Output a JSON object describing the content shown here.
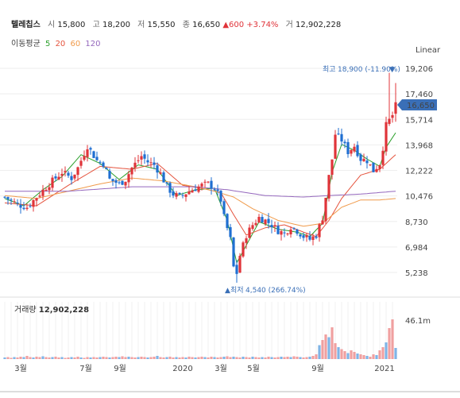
{
  "header": {
    "name": "텔레칩스",
    "open_label": "시",
    "open": "15,800",
    "high_label": "고",
    "high": "18,200",
    "low_label": "저",
    "low": "15,550",
    "close_label": "종",
    "close": "16,650",
    "change": "▲600",
    "change_pct": "+3.74%",
    "volume_label": "거",
    "volume": "12,902,228"
  },
  "moving_average": {
    "label": "이동평균",
    "periods": [
      {
        "value": "5",
        "color": "#2ca02c"
      },
      {
        "value": "20",
        "color": "#e5533d"
      },
      {
        "value": "60",
        "color": "#f09a4a"
      },
      {
        "value": "120",
        "color": "#9467bd"
      }
    ]
  },
  "scale_mode": "Linear",
  "current_price_tag": "16,650",
  "annotations": {
    "max_label": "최고",
    "max_value": "18,900 (-11.90%)",
    "min_label": "최저",
    "min_value": "4,540 (266.74%)"
  },
  "volume_panel": {
    "label": "거래량",
    "value": "12,902,228",
    "max_tick": "46.1m"
  },
  "colors": {
    "up": "#e0343a",
    "down": "#1f6fd1",
    "grid": "#eeeeee",
    "price_tag": "#3a6fb7"
  },
  "chart_data": {
    "type": "candlestick",
    "x_labels": [
      "3월",
      "7월",
      "9월",
      "2020",
      "3월",
      "5월",
      "9월",
      "2021"
    ],
    "y_ticks": [
      "19,206",
      "17,460",
      "15,714",
      "13,968",
      "12,222",
      "10,476",
      "8,730",
      "6,984",
      "5,238"
    ],
    "ylim": [
      4540,
      19206
    ],
    "price_path": [
      [
        0,
        10400
      ],
      [
        4,
        9900
      ],
      [
        7,
        9700
      ],
      [
        10,
        10400
      ],
      [
        14,
        11300
      ],
      [
        18,
        12100
      ],
      [
        21,
        11700
      ],
      [
        23,
        12400
      ],
      [
        26,
        13900
      ],
      [
        29,
        12900
      ],
      [
        31,
        12700
      ],
      [
        33,
        11600
      ],
      [
        36,
        11300
      ],
      [
        38,
        11600
      ],
      [
        40,
        12400
      ],
      [
        43,
        13200
      ],
      [
        45,
        12800
      ],
      [
        47,
        12600
      ],
      [
        49,
        12000
      ],
      [
        51,
        11100
      ],
      [
        53,
        10600
      ],
      [
        55,
        10400
      ],
      [
        58,
        10800
      ],
      [
        60,
        11000
      ],
      [
        62,
        11200
      ],
      [
        64,
        11300
      ],
      [
        66,
        11000
      ],
      [
        68,
        10200
      ],
      [
        69,
        9000
      ],
      [
        71,
        7500
      ],
      [
        72,
        5600
      ],
      [
        73,
        5200
      ],
      [
        74,
        6400
      ],
      [
        76,
        7800
      ],
      [
        78,
        8500
      ],
      [
        80,
        9000
      ],
      [
        82,
        8800
      ],
      [
        84,
        8500
      ],
      [
        86,
        8100
      ],
      [
        88,
        7900
      ],
      [
        90,
        8400
      ],
      [
        92,
        8100
      ],
      [
        94,
        7700
      ],
      [
        96,
        7500
      ],
      [
        98,
        7800
      ],
      [
        100,
        9000
      ],
      [
        102,
        11800
      ],
      [
        103,
        13000
      ],
      [
        104,
        14700
      ],
      [
        106,
        14300
      ],
      [
        108,
        13500
      ],
      [
        110,
        13900
      ],
      [
        112,
        13000
      ],
      [
        114,
        12900
      ],
      [
        116,
        12200
      ],
      [
        118,
        12700
      ],
      [
        119,
        13800
      ],
      [
        120,
        15300
      ],
      [
        122,
        16000
      ],
      [
        123,
        16650
      ]
    ],
    "ma_series": [
      {
        "period": "5",
        "color": "#2ca02c",
        "points": [
          [
            0,
            10300
          ],
          [
            6,
            9800
          ],
          [
            12,
            10900
          ],
          [
            18,
            11800
          ],
          [
            24,
            13300
          ],
          [
            30,
            12700
          ],
          [
            36,
            11600
          ],
          [
            42,
            12600
          ],
          [
            48,
            12300
          ],
          [
            54,
            10500
          ],
          [
            60,
            10900
          ],
          [
            66,
            11000
          ],
          [
            70,
            8800
          ],
          [
            73,
            5900
          ],
          [
            76,
            7100
          ],
          [
            80,
            8700
          ],
          [
            86,
            8200
          ],
          [
            92,
            8000
          ],
          [
            96,
            7700
          ],
          [
            100,
            8600
          ],
          [
            103,
            12100
          ],
          [
            106,
            14000
          ],
          [
            110,
            13600
          ],
          [
            114,
            13000
          ],
          [
            118,
            12500
          ],
          [
            120,
            13800
          ],
          [
            123,
            14800
          ]
        ]
      },
      {
        "period": "20",
        "color": "#e5533d",
        "points": [
          [
            0,
            10000
          ],
          [
            10,
            9800
          ],
          [
            20,
            11200
          ],
          [
            30,
            12500
          ],
          [
            40,
            12300
          ],
          [
            48,
            12700
          ],
          [
            56,
            11200
          ],
          [
            62,
            11000
          ],
          [
            68,
            10700
          ],
          [
            72,
            9200
          ],
          [
            76,
            7800
          ],
          [
            82,
            8300
          ],
          [
            88,
            8500
          ],
          [
            94,
            8000
          ],
          [
            98,
            7700
          ],
          [
            102,
            8800
          ],
          [
            106,
            10300
          ],
          [
            112,
            11900
          ],
          [
            118,
            12300
          ],
          [
            123,
            13300
          ]
        ]
      },
      {
        "period": "60",
        "color": "#f09a4a",
        "points": [
          [
            0,
            10500
          ],
          [
            10,
            10300
          ],
          [
            20,
            10800
          ],
          [
            30,
            11300
          ],
          [
            40,
            11700
          ],
          [
            50,
            11500
          ],
          [
            60,
            11100
          ],
          [
            66,
            10800
          ],
          [
            72,
            10400
          ],
          [
            78,
            9600
          ],
          [
            86,
            8800
          ],
          [
            94,
            8400
          ],
          [
            100,
            8600
          ],
          [
            106,
            9700
          ],
          [
            112,
            10200
          ],
          [
            118,
            10200
          ],
          [
            123,
            10300
          ]
        ]
      },
      {
        "period": "120",
        "color": "#9467bd",
        "points": [
          [
            0,
            10800
          ],
          [
            20,
            10800
          ],
          [
            40,
            11100
          ],
          [
            60,
            11100
          ],
          [
            70,
            10900
          ],
          [
            82,
            10500
          ],
          [
            94,
            10400
          ],
          [
            102,
            10500
          ],
          [
            112,
            10600
          ],
          [
            123,
            10800
          ]
        ]
      }
    ],
    "volume_heights": [
      0.04,
      0.05,
      0.03,
      0.05,
      0.04,
      0.06,
      0.05,
      0.08,
      0.05,
      0.04,
      0.06,
      0.05,
      0.07,
      0.05,
      0.04,
      0.05,
      0.06,
      0.04,
      0.05,
      0.03,
      0.04,
      0.05,
      0.04,
      0.06,
      0.04,
      0.03,
      0.05,
      0.04,
      0.05,
      0.04,
      0.05,
      0.06,
      0.05,
      0.04,
      0.05,
      0.06,
      0.05,
      0.07,
      0.05,
      0.06,
      0.05,
      0.04,
      0.05,
      0.06,
      0.05,
      0.04,
      0.05,
      0.06,
      0.08,
      0.05,
      0.04,
      0.05,
      0.06,
      0.04,
      0.05,
      0.04,
      0.05,
      0.04,
      0.06,
      0.05,
      0.04,
      0.05,
      0.06,
      0.05,
      0.04,
      0.06,
      0.05,
      0.04,
      0.05,
      0.06,
      0.07,
      0.05,
      0.06,
      0.05,
      0.04,
      0.06,
      0.05,
      0.04,
      0.06,
      0.05,
      0.04,
      0.05,
      0.04,
      0.06,
      0.05,
      0.04,
      0.05,
      0.06,
      0.05,
      0.06,
      0.05,
      0.07,
      0.06,
      0.05,
      0.04,
      0.05,
      0.06,
      0.08,
      0.12,
      0.35,
      0.48,
      0.62,
      0.55,
      0.8,
      0.4,
      0.3,
      0.25,
      0.2,
      0.15,
      0.22,
      0.18,
      0.14,
      0.12,
      0.1,
      0.08,
      0.06,
      0.12,
      0.1,
      0.22,
      0.3,
      0.42,
      0.78,
      1.0,
      0.28
    ]
  }
}
